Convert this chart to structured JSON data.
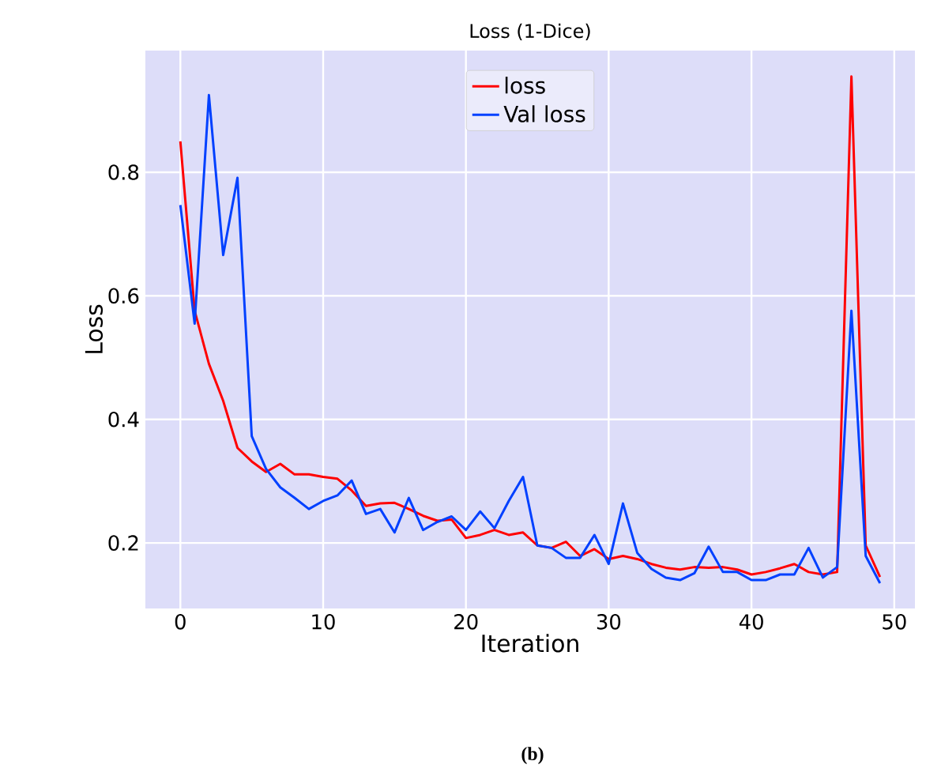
{
  "chart_data": {
    "type": "line",
    "title": "Loss (1-Dice)",
    "xlabel": "Iteration",
    "ylabel": "Loss",
    "x": [
      0,
      1,
      2,
      3,
      4,
      5,
      6,
      7,
      8,
      9,
      10,
      11,
      12,
      13,
      14,
      15,
      16,
      17,
      18,
      19,
      20,
      21,
      22,
      23,
      24,
      25,
      26,
      27,
      28,
      29,
      30,
      31,
      32,
      33,
      34,
      35,
      36,
      37,
      38,
      39,
      40,
      41,
      42,
      43,
      44,
      45,
      46,
      47,
      48,
      49
    ],
    "series": [
      {
        "name": "loss",
        "color": "#ff0000",
        "values": [
          0.85,
          0.576,
          0.49,
          0.43,
          0.354,
          0.332,
          0.315,
          0.328,
          0.311,
          0.311,
          0.307,
          0.304,
          0.285,
          0.26,
          0.264,
          0.265,
          0.255,
          0.244,
          0.236,
          0.238,
          0.208,
          0.213,
          0.221,
          0.213,
          0.217,
          0.196,
          0.192,
          0.202,
          0.179,
          0.19,
          0.174,
          0.179,
          0.174,
          0.166,
          0.16,
          0.157,
          0.161,
          0.16,
          0.161,
          0.157,
          0.149,
          0.153,
          0.159,
          0.166,
          0.153,
          0.149,
          0.153,
          0.955,
          0.196,
          0.145
        ]
      },
      {
        "name": "Val loss",
        "color": "#0040ff",
        "values": [
          0.747,
          0.555,
          0.925,
          0.666,
          0.791,
          0.373,
          0.32,
          0.29,
          0.273,
          0.255,
          0.268,
          0.277,
          0.301,
          0.247,
          0.255,
          0.217,
          0.273,
          0.221,
          0.234,
          0.243,
          0.221,
          0.251,
          0.224,
          0.268,
          0.307,
          0.196,
          0.192,
          0.176,
          0.176,
          0.213,
          0.166,
          0.264,
          0.184,
          0.158,
          0.144,
          0.14,
          0.151,
          0.194,
          0.153,
          0.153,
          0.14,
          0.14,
          0.149,
          0.149,
          0.192,
          0.144,
          0.161,
          0.576,
          0.179,
          0.135
        ]
      }
    ],
    "xlim": [
      -2.45,
      51.45
    ],
    "ylim": [
      0.094,
      0.997
    ],
    "xticks": [
      0,
      10,
      20,
      30,
      40,
      50
    ],
    "yticks": [
      0.2,
      0.4,
      0.6,
      0.8
    ],
    "grid": true,
    "legend": "top",
    "line_style": "solid",
    "marker": "none",
    "annotations": [
      "**(b)**"
    ]
  }
}
